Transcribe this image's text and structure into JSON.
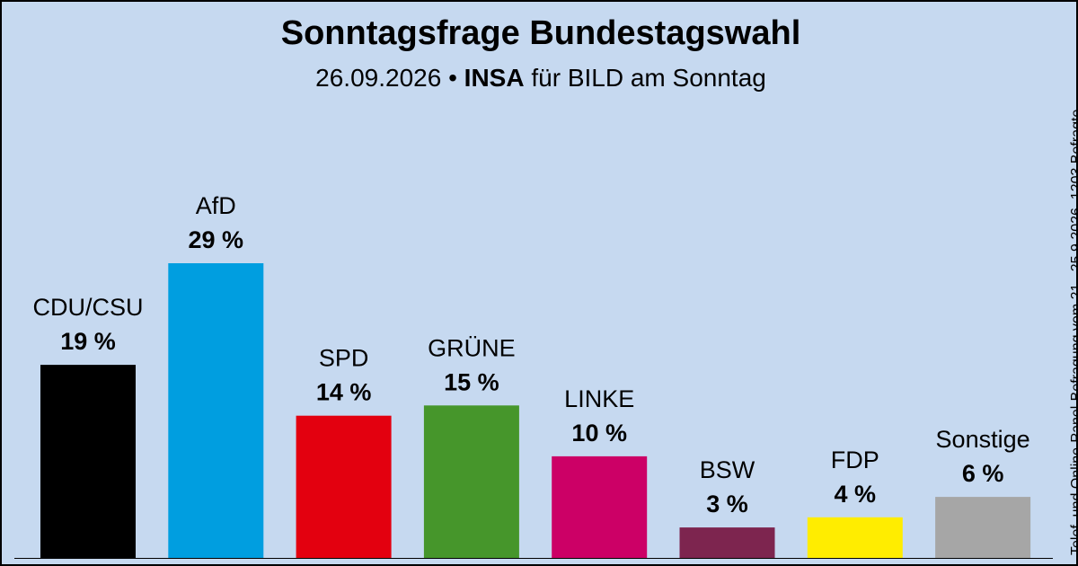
{
  "header": {
    "title": "Sonntagsfrage Bundestagswahl",
    "date": "26.09.2026",
    "bullet": "•",
    "institute": "INSA",
    "client": "für BILD am Sonntag"
  },
  "note": "Telef. und Online-Panel-Befragung vom 21.–25.9.2026, 1203 Befragte",
  "chart_data": {
    "type": "bar",
    "title": "Sonntagsfrage Bundestagswahl",
    "subtitle": "26.09.2026 • INSA für BILD am Sonntag",
    "categories": [
      "CDU/CSU",
      "AfD",
      "SPD",
      "GRÜNE",
      "LINKE",
      "BSW",
      "FDP",
      "Sonstige"
    ],
    "values": [
      19,
      29,
      14,
      15,
      10,
      3,
      4,
      6
    ],
    "value_labels": [
      "19 %",
      "29 %",
      "14 %",
      "15 %",
      "10 %",
      "3 %",
      "4 %",
      "6 %"
    ],
    "colors": [
      "#000000",
      "#009ee0",
      "#e3000f",
      "#46962b",
      "#cc0066",
      "#7d254f",
      "#ffed00",
      "#a6a6a6"
    ],
    "unit": "%",
    "ylim": [
      0,
      29
    ],
    "grid": false,
    "legend": "none"
  }
}
